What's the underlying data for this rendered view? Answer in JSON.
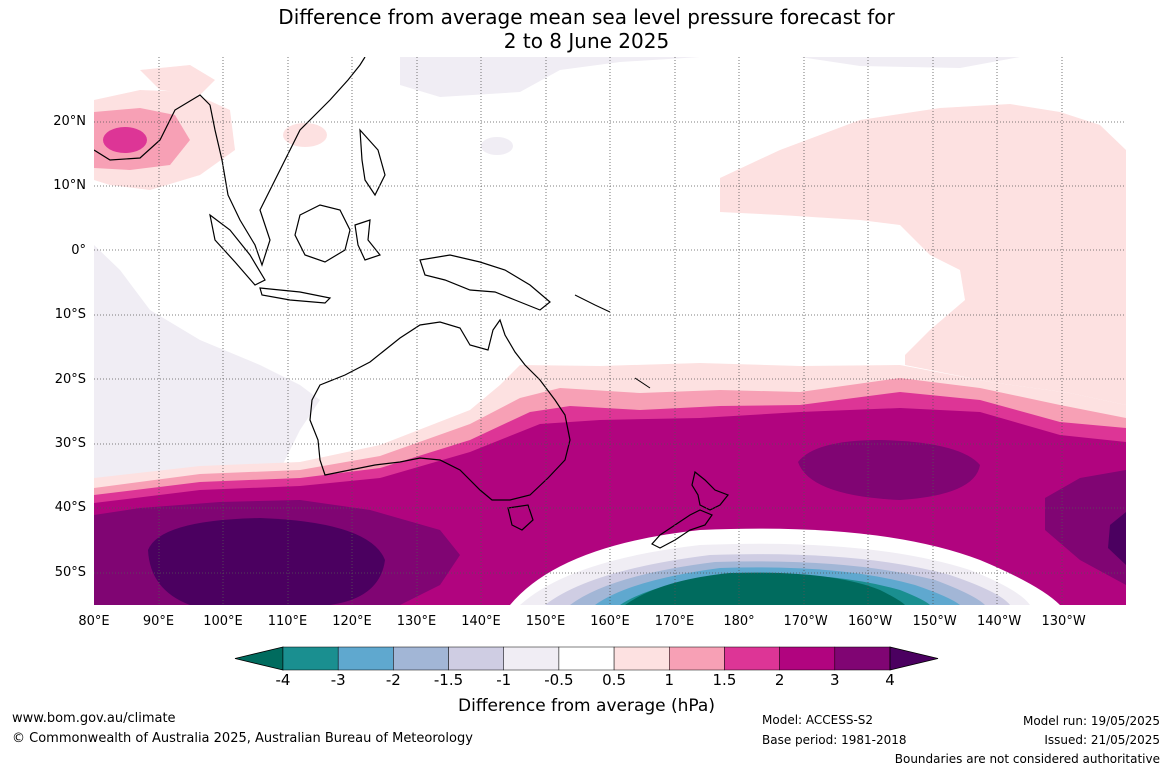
{
  "title_line1": "Difference from average mean sea level pressure forecast for",
  "title_line2": "2 to 8 June 2025",
  "lon_ticks": [
    "80°E",
    "90°E",
    "100°E",
    "110°E",
    "120°E",
    "130°E",
    "140°E",
    "150°E",
    "160°E",
    "170°E",
    "180°",
    "170°W",
    "160°W",
    "150°W",
    "140°W",
    "130°W"
  ],
  "lat_ticks": [
    "20°N",
    "10°N",
    "0°",
    "10°S",
    "20°S",
    "30°S",
    "40°S",
    "50°S"
  ],
  "colorbar": {
    "title": "Difference from average (hPa)",
    "labels": [
      "-4",
      "-3",
      "-2",
      "-1.5",
      "-1",
      "-0.5",
      "0.5",
      "1",
      "1.5",
      "2",
      "3",
      "4"
    ],
    "colors": [
      "#006b5e",
      "#1a8f90",
      "#5fa8cf",
      "#a2b6d6",
      "#cfcde3",
      "#f0edf4",
      "#ffffff",
      "#fde1e1",
      "#f7a0b5",
      "#dd3596",
      "#b1047f",
      "#800573",
      "#4b0060"
    ]
  },
  "footer": {
    "website": "www.bom.gov.au/climate",
    "copyright": "© Commonwealth of Australia 2025, Australian Bureau of Meteorology",
    "model": "Model: ACCESS-S2",
    "base_period": "Base period: 1981-2018",
    "model_run": "Model run: 19/05/2025",
    "issued": "Issued: 21/05/2025",
    "disclaimer": "Boundaries are not considered authoritative"
  }
}
